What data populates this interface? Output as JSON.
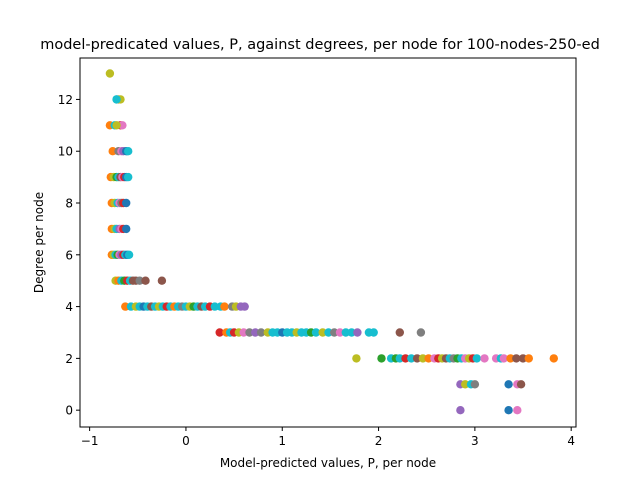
{
  "chart_data": {
    "type": "scatter",
    "title": "model-predicated values, P, against degrees, per node for 100-nodes-250-ed",
    "xlabel": "Model-predicted values, P, per node",
    "ylabel": "Degree per node",
    "xlim": [
      -1.1,
      4.05
    ],
    "ylim": [
      -0.65,
      13.6
    ],
    "xticks": [
      -1,
      0,
      1,
      2,
      3,
      4
    ],
    "yticks": [
      0,
      2,
      4,
      6,
      8,
      10,
      12
    ],
    "grid": false,
    "legend": "none",
    "palette": [
      "#1f77b4",
      "#ff7f0e",
      "#2ca02c",
      "#d62728",
      "#9467bd",
      "#8c564b",
      "#e377c2",
      "#7f7f7f",
      "#bcbd22",
      "#17becf"
    ],
    "points": [
      {
        "x": -0.79,
        "y": 13,
        "c": 8
      },
      {
        "x": -0.72,
        "y": 12,
        "c": 9
      },
      {
        "x": -0.7,
        "y": 12,
        "c": 1
      },
      {
        "x": -0.68,
        "y": 12,
        "c": 8
      },
      {
        "x": -0.72,
        "y": 12,
        "c": 9
      },
      {
        "x": -0.79,
        "y": 11,
        "c": 1
      },
      {
        "x": -0.74,
        "y": 11,
        "c": 9
      },
      {
        "x": -0.68,
        "y": 11,
        "c": 3
      },
      {
        "x": -0.66,
        "y": 11,
        "c": 6
      },
      {
        "x": -0.72,
        "y": 11,
        "c": 8
      },
      {
        "x": -0.76,
        "y": 10,
        "c": 1
      },
      {
        "x": -0.7,
        "y": 10,
        "c": 7
      },
      {
        "x": -0.67,
        "y": 10,
        "c": 6
      },
      {
        "x": -0.65,
        "y": 10,
        "c": 4
      },
      {
        "x": -0.62,
        "y": 10,
        "c": 0
      },
      {
        "x": -0.6,
        "y": 10,
        "c": 9
      },
      {
        "x": -0.78,
        "y": 9,
        "c": 1
      },
      {
        "x": -0.75,
        "y": 9,
        "c": 8
      },
      {
        "x": -0.72,
        "y": 9,
        "c": 2
      },
      {
        "x": -0.7,
        "y": 9,
        "c": 9
      },
      {
        "x": -0.68,
        "y": 9,
        "c": 5
      },
      {
        "x": -0.66,
        "y": 9,
        "c": 6
      },
      {
        "x": -0.64,
        "y": 9,
        "c": 3
      },
      {
        "x": -0.62,
        "y": 9,
        "c": 0
      },
      {
        "x": -0.6,
        "y": 9,
        "c": 9
      },
      {
        "x": -0.77,
        "y": 8,
        "c": 1
      },
      {
        "x": -0.74,
        "y": 8,
        "c": 8
      },
      {
        "x": -0.71,
        "y": 8,
        "c": 9
      },
      {
        "x": -0.69,
        "y": 8,
        "c": 6
      },
      {
        "x": -0.67,
        "y": 8,
        "c": 7
      },
      {
        "x": -0.65,
        "y": 8,
        "c": 3
      },
      {
        "x": -0.62,
        "y": 8,
        "c": 0
      },
      {
        "x": -0.77,
        "y": 7,
        "c": 1
      },
      {
        "x": -0.74,
        "y": 7,
        "c": 8
      },
      {
        "x": -0.72,
        "y": 7,
        "c": 9
      },
      {
        "x": -0.69,
        "y": 7,
        "c": 4
      },
      {
        "x": -0.67,
        "y": 7,
        "c": 6
      },
      {
        "x": -0.65,
        "y": 7,
        "c": 3
      },
      {
        "x": -0.62,
        "y": 7,
        "c": 0
      },
      {
        "x": -0.77,
        "y": 6,
        "c": 1
      },
      {
        "x": -0.75,
        "y": 6,
        "c": 8
      },
      {
        "x": -0.73,
        "y": 6,
        "c": 9
      },
      {
        "x": -0.71,
        "y": 6,
        "c": 2
      },
      {
        "x": -0.69,
        "y": 6,
        "c": 6
      },
      {
        "x": -0.67,
        "y": 6,
        "c": 4
      },
      {
        "x": -0.65,
        "y": 6,
        "c": 3
      },
      {
        "x": -0.63,
        "y": 6,
        "c": 9
      },
      {
        "x": -0.61,
        "y": 6,
        "c": 0
      },
      {
        "x": -0.59,
        "y": 6,
        "c": 9
      },
      {
        "x": -0.73,
        "y": 5,
        "c": 8
      },
      {
        "x": -0.7,
        "y": 5,
        "c": 1
      },
      {
        "x": -0.67,
        "y": 5,
        "c": 9
      },
      {
        "x": -0.64,
        "y": 5,
        "c": 2
      },
      {
        "x": -0.61,
        "y": 5,
        "c": 3
      },
      {
        "x": -0.58,
        "y": 5,
        "c": 9
      },
      {
        "x": -0.55,
        "y": 5,
        "c": 5
      },
      {
        "x": -0.52,
        "y": 5,
        "c": 5
      },
      {
        "x": -0.48,
        "y": 5,
        "c": 7
      },
      {
        "x": -0.42,
        "y": 5,
        "c": 5
      },
      {
        "x": -0.25,
        "y": 5,
        "c": 5
      },
      {
        "x": -0.63,
        "y": 4,
        "c": 1
      },
      {
        "x": -0.57,
        "y": 4,
        "c": 9
      },
      {
        "x": -0.52,
        "y": 4,
        "c": 8
      },
      {
        "x": -0.48,
        "y": 4,
        "c": 9
      },
      {
        "x": -0.44,
        "y": 4,
        "c": 0
      },
      {
        "x": -0.4,
        "y": 4,
        "c": 9
      },
      {
        "x": -0.36,
        "y": 4,
        "c": 5
      },
      {
        "x": -0.32,
        "y": 4,
        "c": 9
      },
      {
        "x": -0.28,
        "y": 4,
        "c": 8
      },
      {
        "x": -0.24,
        "y": 4,
        "c": 9
      },
      {
        "x": -0.2,
        "y": 4,
        "c": 3
      },
      {
        "x": -0.16,
        "y": 4,
        "c": 9
      },
      {
        "x": -0.12,
        "y": 4,
        "c": 1
      },
      {
        "x": -0.08,
        "y": 4,
        "c": 9
      },
      {
        "x": -0.04,
        "y": 4,
        "c": 7
      },
      {
        "x": 0.0,
        "y": 4,
        "c": 9
      },
      {
        "x": 0.04,
        "y": 4,
        "c": 8
      },
      {
        "x": 0.08,
        "y": 4,
        "c": 2
      },
      {
        "x": 0.12,
        "y": 4,
        "c": 9
      },
      {
        "x": 0.16,
        "y": 4,
        "c": 5
      },
      {
        "x": 0.2,
        "y": 4,
        "c": 9
      },
      {
        "x": 0.25,
        "y": 4,
        "c": 3
      },
      {
        "x": 0.3,
        "y": 4,
        "c": 9
      },
      {
        "x": 0.36,
        "y": 4,
        "c": 9
      },
      {
        "x": 0.4,
        "y": 4,
        "c": 1
      },
      {
        "x": 0.48,
        "y": 4,
        "c": 7
      },
      {
        "x": 0.52,
        "y": 4,
        "c": 8
      },
      {
        "x": 0.57,
        "y": 4,
        "c": 4
      },
      {
        "x": 0.61,
        "y": 4,
        "c": 4
      },
      {
        "x": 0.35,
        "y": 3,
        "c": 3
      },
      {
        "x": 0.42,
        "y": 3,
        "c": 1
      },
      {
        "x": 0.46,
        "y": 3,
        "c": 9
      },
      {
        "x": 0.5,
        "y": 3,
        "c": 3
      },
      {
        "x": 0.55,
        "y": 3,
        "c": 8
      },
      {
        "x": 0.6,
        "y": 3,
        "c": 6
      },
      {
        "x": 0.66,
        "y": 3,
        "c": 7
      },
      {
        "x": 0.72,
        "y": 3,
        "c": 4
      },
      {
        "x": 0.78,
        "y": 3,
        "c": 7
      },
      {
        "x": 0.85,
        "y": 3,
        "c": 8
      },
      {
        "x": 0.9,
        "y": 3,
        "c": 9
      },
      {
        "x": 0.95,
        "y": 3,
        "c": 9
      },
      {
        "x": 1.0,
        "y": 3,
        "c": 0
      },
      {
        "x": 1.05,
        "y": 3,
        "c": 9
      },
      {
        "x": 1.1,
        "y": 3,
        "c": 9
      },
      {
        "x": 1.15,
        "y": 3,
        "c": 8
      },
      {
        "x": 1.2,
        "y": 3,
        "c": 9
      },
      {
        "x": 1.25,
        "y": 3,
        "c": 9
      },
      {
        "x": 1.3,
        "y": 3,
        "c": 2
      },
      {
        "x": 1.35,
        "y": 3,
        "c": 9
      },
      {
        "x": 1.42,
        "y": 3,
        "c": 8
      },
      {
        "x": 1.48,
        "y": 3,
        "c": 9
      },
      {
        "x": 1.54,
        "y": 3,
        "c": 7
      },
      {
        "x": 1.6,
        "y": 3,
        "c": 6
      },
      {
        "x": 1.66,
        "y": 3,
        "c": 9
      },
      {
        "x": 1.72,
        "y": 3,
        "c": 9
      },
      {
        "x": 1.78,
        "y": 3,
        "c": 4
      },
      {
        "x": 1.9,
        "y": 3,
        "c": 9
      },
      {
        "x": 1.95,
        "y": 3,
        "c": 9
      },
      {
        "x": 2.22,
        "y": 3,
        "c": 5
      },
      {
        "x": 2.44,
        "y": 3,
        "c": 7
      },
      {
        "x": 1.77,
        "y": 2,
        "c": 8
      },
      {
        "x": 2.03,
        "y": 2,
        "c": 2
      },
      {
        "x": 2.13,
        "y": 2,
        "c": 9
      },
      {
        "x": 2.18,
        "y": 2,
        "c": 2
      },
      {
        "x": 2.22,
        "y": 2,
        "c": 9
      },
      {
        "x": 2.28,
        "y": 2,
        "c": 3
      },
      {
        "x": 2.34,
        "y": 2,
        "c": 9
      },
      {
        "x": 2.4,
        "y": 2,
        "c": 5
      },
      {
        "x": 2.46,
        "y": 2,
        "c": 8
      },
      {
        "x": 2.52,
        "y": 2,
        "c": 1
      },
      {
        "x": 2.58,
        "y": 2,
        "c": 6
      },
      {
        "x": 2.62,
        "y": 2,
        "c": 3
      },
      {
        "x": 2.66,
        "y": 2,
        "c": 8
      },
      {
        "x": 2.7,
        "y": 2,
        "c": 5
      },
      {
        "x": 2.74,
        "y": 2,
        "c": 9
      },
      {
        "x": 2.78,
        "y": 2,
        "c": 7
      },
      {
        "x": 2.82,
        "y": 2,
        "c": 2
      },
      {
        "x": 2.86,
        "y": 2,
        "c": 9
      },
      {
        "x": 2.9,
        "y": 2,
        "c": 6
      },
      {
        "x": 2.94,
        "y": 2,
        "c": 8
      },
      {
        "x": 2.98,
        "y": 2,
        "c": 3
      },
      {
        "x": 3.02,
        "y": 2,
        "c": 9
      },
      {
        "x": 3.1,
        "y": 2,
        "c": 6
      },
      {
        "x": 3.22,
        "y": 2,
        "c": 6
      },
      {
        "x": 3.27,
        "y": 2,
        "c": 9
      },
      {
        "x": 3.3,
        "y": 2,
        "c": 6
      },
      {
        "x": 3.37,
        "y": 2,
        "c": 1
      },
      {
        "x": 3.43,
        "y": 2,
        "c": 5
      },
      {
        "x": 3.5,
        "y": 2,
        "c": 5
      },
      {
        "x": 3.56,
        "y": 2,
        "c": 1
      },
      {
        "x": 3.82,
        "y": 2,
        "c": 1
      },
      {
        "x": 2.85,
        "y": 1,
        "c": 4
      },
      {
        "x": 2.9,
        "y": 1,
        "c": 8
      },
      {
        "x": 2.96,
        "y": 1,
        "c": 9
      },
      {
        "x": 3.0,
        "y": 1,
        "c": 7
      },
      {
        "x": 3.35,
        "y": 1,
        "c": 0
      },
      {
        "x": 3.44,
        "y": 1,
        "c": 6
      },
      {
        "x": 3.48,
        "y": 1,
        "c": 5
      },
      {
        "x": 2.85,
        "y": 0,
        "c": 4
      },
      {
        "x": 3.35,
        "y": 0,
        "c": 0
      },
      {
        "x": 3.44,
        "y": 0,
        "c": 6
      }
    ]
  }
}
